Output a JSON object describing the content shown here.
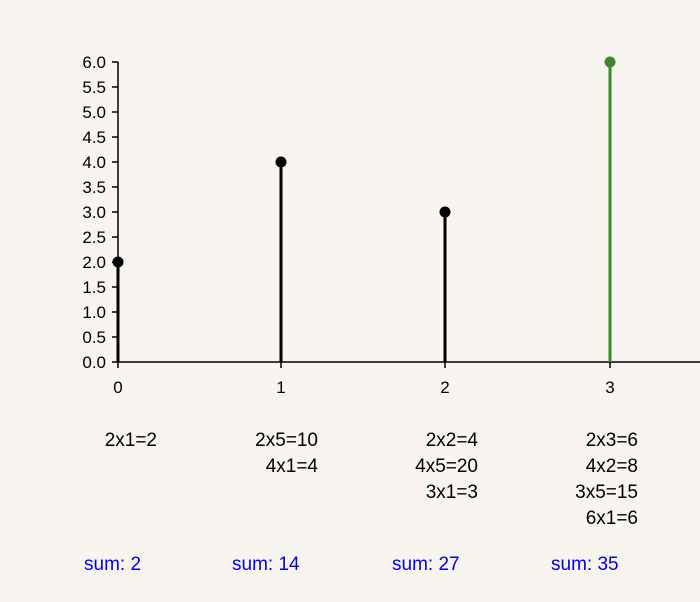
{
  "chart_data": {
    "type": "stem",
    "x": [
      0,
      1,
      2,
      3
    ],
    "values": [
      2.0,
      4.0,
      3.0,
      6.0
    ],
    "stem_colors": [
      "#000000",
      "#000000",
      "#000000",
      "#3a8a2a"
    ],
    "ylim": [
      0,
      6.0
    ],
    "yticks": [
      "0.0",
      "0.5",
      "1.0",
      "1.5",
      "2.0",
      "2.5",
      "3.0",
      "3.5",
      "4.0",
      "4.5",
      "5.0",
      "5.5",
      "6.0"
    ],
    "xticks": [
      "0",
      "1",
      "2",
      "3"
    ],
    "grid": false
  },
  "calculations": [
    {
      "lines": [
        "2x1=2"
      ],
      "sum": "sum: 2"
    },
    {
      "lines": [
        "2x5=10",
        "4x1=4"
      ],
      "sum": "sum: 14"
    },
    {
      "lines": [
        "2x2=4",
        "4x5=20",
        "3x1=3"
      ],
      "sum": "sum: 27"
    },
    {
      "lines": [
        "2x3=6",
        "4x2=8",
        "3x5=15",
        "6x1=6"
      ],
      "sum": "sum: 35"
    }
  ],
  "colors": {
    "background": "#f8f4ef",
    "axis": "#000000",
    "sum_text": "#0000ee",
    "highlight": "#3a8a2a"
  }
}
